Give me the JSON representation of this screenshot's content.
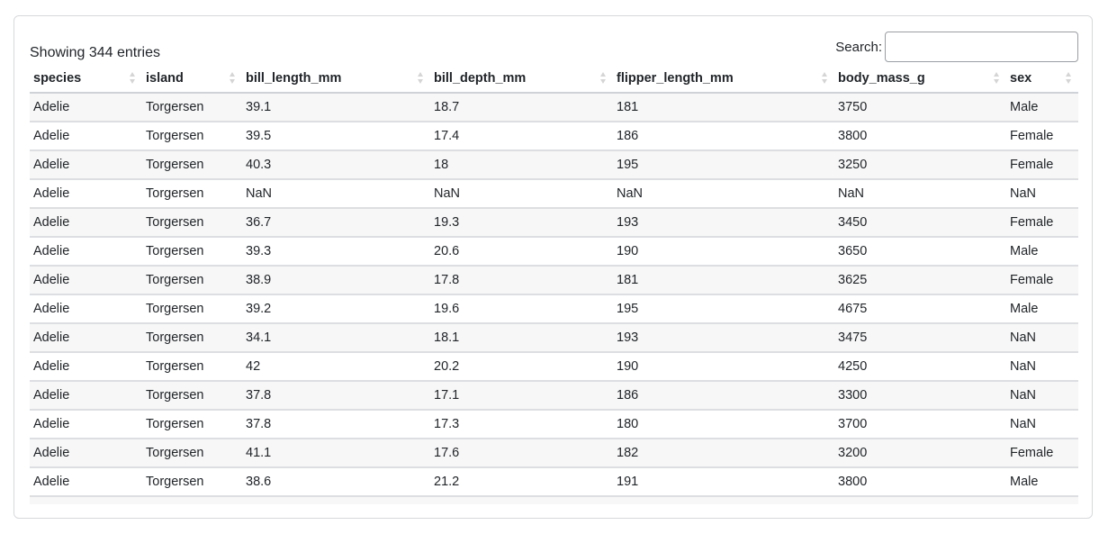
{
  "info": "Showing 344 entries",
  "search": {
    "label": "Search:",
    "value": ""
  },
  "columns": [
    "species",
    "island",
    "bill_length_mm",
    "bill_depth_mm",
    "flipper_length_mm",
    "body_mass_g",
    "sex"
  ],
  "rows": [
    [
      "Adelie",
      "Torgersen",
      "39.1",
      "18.7",
      "181",
      "3750",
      "Male"
    ],
    [
      "Adelie",
      "Torgersen",
      "39.5",
      "17.4",
      "186",
      "3800",
      "Female"
    ],
    [
      "Adelie",
      "Torgersen",
      "40.3",
      "18",
      "195",
      "3250",
      "Female"
    ],
    [
      "Adelie",
      "Torgersen",
      "NaN",
      "NaN",
      "NaN",
      "NaN",
      "NaN"
    ],
    [
      "Adelie",
      "Torgersen",
      "36.7",
      "19.3",
      "193",
      "3450",
      "Female"
    ],
    [
      "Adelie",
      "Torgersen",
      "39.3",
      "20.6",
      "190",
      "3650",
      "Male"
    ],
    [
      "Adelie",
      "Torgersen",
      "38.9",
      "17.8",
      "181",
      "3625",
      "Female"
    ],
    [
      "Adelie",
      "Torgersen",
      "39.2",
      "19.6",
      "195",
      "4675",
      "Male"
    ],
    [
      "Adelie",
      "Torgersen",
      "34.1",
      "18.1",
      "193",
      "3475",
      "NaN"
    ],
    [
      "Adelie",
      "Torgersen",
      "42",
      "20.2",
      "190",
      "4250",
      "NaN"
    ],
    [
      "Adelie",
      "Torgersen",
      "37.8",
      "17.1",
      "186",
      "3300",
      "NaN"
    ],
    [
      "Adelie",
      "Torgersen",
      "37.8",
      "17.3",
      "180",
      "3700",
      "NaN"
    ],
    [
      "Adelie",
      "Torgersen",
      "41.1",
      "17.6",
      "182",
      "3200",
      "Female"
    ],
    [
      "Adelie",
      "Torgersen",
      "38.6",
      "21.2",
      "191",
      "3800",
      "Male"
    ]
  ]
}
